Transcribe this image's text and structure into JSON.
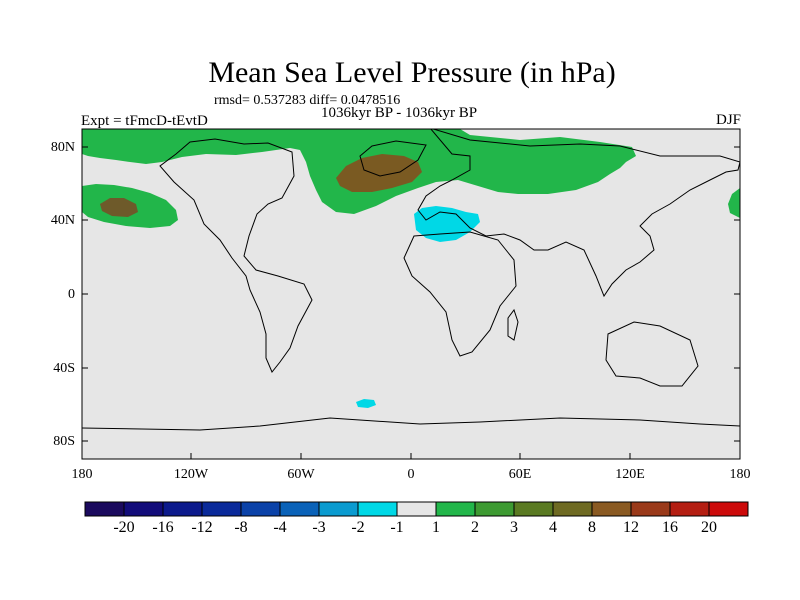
{
  "title": "Mean Sea Level Pressure (in hPa)",
  "stats": "rmsd= 0.537283  diff= 0.0478516",
  "period": "1036kyr BP - 1036kyr BP",
  "experiment": "Expt = tFmcD-tEvtD",
  "season": "DJF",
  "map": {
    "y_ticks": [
      "80N",
      "40N",
      "0",
      "40S",
      "80S"
    ],
    "x_ticks": [
      "180",
      "120W",
      "60W",
      "0",
      "60E",
      "120E",
      "180"
    ],
    "colors": {
      "background": "#e6e6e6",
      "coast": "#000000",
      "positive_1_2": "#22b64a",
      "positive_3_4": "#5a7a22",
      "positive_4_8": "#7a5a22",
      "negative_2_1": "#00d8e6"
    }
  },
  "colorbar": {
    "labels": [
      "-20",
      "-16",
      "-12",
      "-8",
      "-4",
      "-3",
      "-2",
      "-1",
      "1",
      "2",
      "3",
      "4",
      "8",
      "12",
      "16",
      "20"
    ],
    "colors": [
      "#1b0a5e",
      "#120c7a",
      "#0c1a8c",
      "#0a2a9a",
      "#0b42a8",
      "#0a62b8",
      "#0a9bd0",
      "#00d8e6",
      "#e6e6e6",
      "#22b64a",
      "#3d9a32",
      "#5a7a22",
      "#6e6a22",
      "#8a5a22",
      "#9a3a1a",
      "#b41e12",
      "#cc0a0a"
    ]
  }
}
